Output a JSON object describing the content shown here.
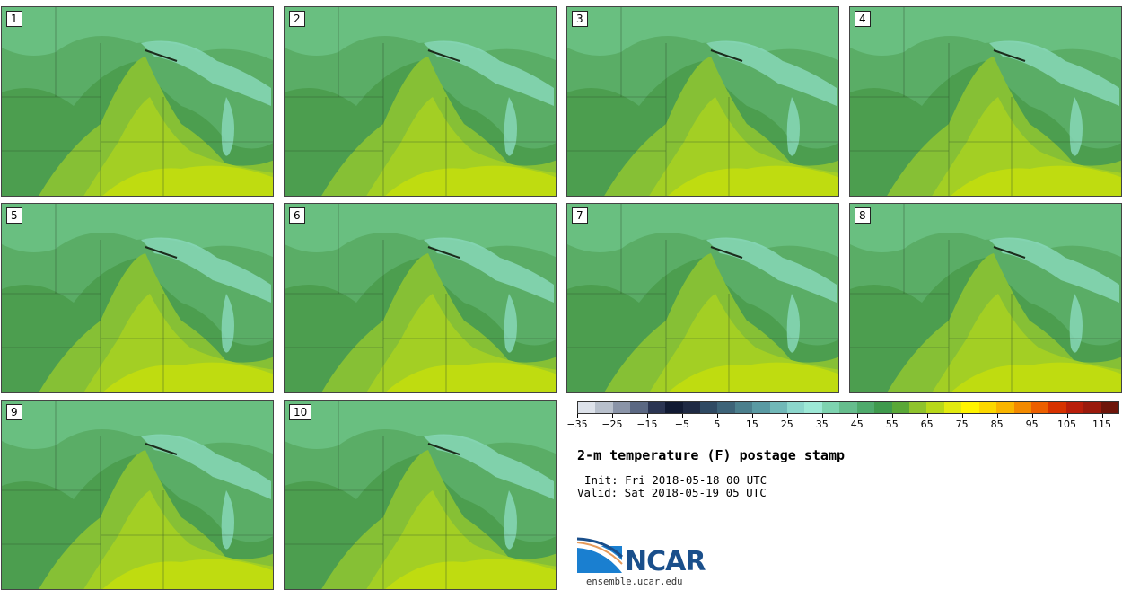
{
  "panels": [
    {
      "label": "1"
    },
    {
      "label": "2"
    },
    {
      "label": "3"
    },
    {
      "label": "4"
    },
    {
      "label": "5"
    },
    {
      "label": "6"
    },
    {
      "label": "7"
    },
    {
      "label": "8"
    },
    {
      "label": "9"
    },
    {
      "label": "10"
    }
  ],
  "colorbar": {
    "colors": [
      "#dde2ea",
      "#b8c0cc",
      "#8a94a8",
      "#5b6883",
      "#2b3553",
      "#111a33",
      "#1f2a44",
      "#2f4a63",
      "#3d6378",
      "#4b7f8d",
      "#5a9aa3",
      "#71b8b8",
      "#8cd6cc",
      "#9de8d6",
      "#7ed3b0",
      "#66bd8d",
      "#4faa6c",
      "#3f9a4d",
      "#5aa838",
      "#8fc32c",
      "#b8d81a",
      "#e2ea10",
      "#fff400",
      "#fcd800",
      "#f9b500",
      "#f38a00",
      "#ec5f00",
      "#d73200",
      "#b91e0a",
      "#9a1a0c",
      "#6e150a"
    ],
    "tick_labels": [
      "−35",
      "−25",
      "−15",
      "−5",
      "5",
      "15",
      "25",
      "35",
      "45",
      "55",
      "65",
      "75",
      "85",
      "95",
      "105",
      "115"
    ]
  },
  "title": "2-m temperature (F) postage stamp",
  "init_text": "Init: Fri 2018-05-18 00 UTC",
  "valid_text": "Valid: Sat 2018-05-19 05 UTC",
  "logo": {
    "name": "NCAR",
    "url": "ensemble.ucar.edu"
  }
}
